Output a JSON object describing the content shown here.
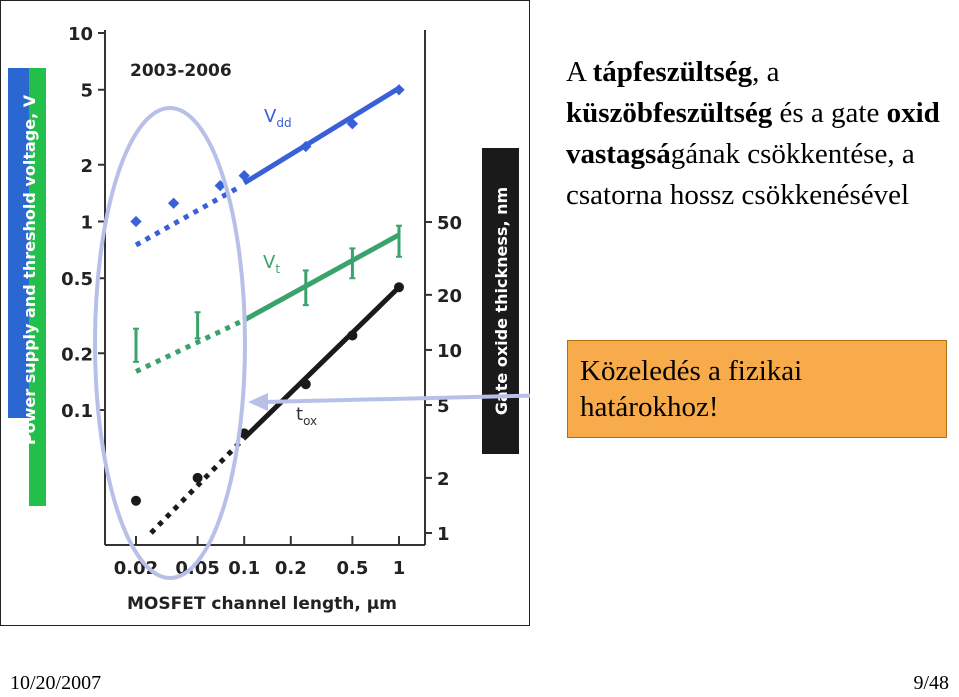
{
  "slide": {
    "title_parts": [
      {
        "text": "A ",
        "bold": false
      },
      {
        "text": "tápfeszültség",
        "bold": true
      },
      {
        "text": ", a ",
        "bold": false
      },
      {
        "text": "küszöbfeszültség",
        "bold": true
      },
      {
        "text": " és a gate ",
        "bold": false
      },
      {
        "text": "oxid vastagsá",
        "bold": true
      },
      {
        "text": "gának csökkentése, a csatorna hossz csökkenésével",
        "bold": false
      }
    ],
    "callout": "Közeledés a fizikai határokhoz!",
    "date": "10/20/2007",
    "page": "9/48"
  },
  "colors": {
    "vdd": "#3a60d8",
    "vt": "#3aa36b",
    "tox": "#1a1a1a",
    "ellipse": "#b8c0e8",
    "arrow": "#b8c0e8",
    "left_axis_band_blue": "#2b67d1",
    "left_axis_band_green": "#22c04a",
    "right_axis_band": "#1a1a1a",
    "callout_fill": "#f7ab4a"
  },
  "chart_data": {
    "type": "scatter",
    "inset_label": "2003-2006",
    "xlabel": "MOSFET channel length, µm",
    "ylabel_left": "Power supply and threshold voltage, V",
    "ylabel_right": "Gate oxide thickness, nm",
    "x_scale": "log",
    "xlim": [
      0.015,
      1.3
    ],
    "x_ticks": [
      0.02,
      0.05,
      0.1,
      0.2,
      0.5,
      1
    ],
    "x_tick_labels": [
      "0.02",
      "0.05",
      "0.1",
      "0.2",
      "0.5",
      "1"
    ],
    "y_left_scale": "log",
    "y_left_ticks": [
      0.1,
      0.2,
      0.5,
      1,
      2,
      5,
      10
    ],
    "y_left_tick_labels": [
      "0.1",
      "0.2",
      "0.5",
      "1",
      "2",
      "5",
      "10"
    ],
    "y_right_scale": "log",
    "y_right_ticks": [
      1,
      2,
      5,
      10,
      20,
      50
    ],
    "y_right_tick_labels": [
      "1",
      "2",
      "5",
      "10",
      "20",
      "50"
    ],
    "series": [
      {
        "name": "Vdd",
        "axis": "left",
        "points": [
          {
            "x": 0.02,
            "y": 1.0
          },
          {
            "x": 0.035,
            "y": 1.25
          },
          {
            "x": 0.07,
            "y": 1.55
          },
          {
            "x": 0.1,
            "y": 1.75
          },
          {
            "x": 0.25,
            "y": 2.5
          },
          {
            "x": 0.5,
            "y": 3.3
          },
          {
            "x": 1.0,
            "y": 5.0
          }
        ],
        "trend_extrapolated": [
          {
            "x": 0.02,
            "y": 0.75
          },
          {
            "x": 0.09,
            "y": 1.5
          }
        ],
        "trend_solid": [
          {
            "x": 0.1,
            "y": 1.6
          },
          {
            "x": 1.0,
            "y": 5.1
          }
        ]
      },
      {
        "name": "Vt",
        "axis": "left",
        "points": [
          {
            "x": 0.02,
            "y": 0.21
          },
          {
            "x": 0.05,
            "y": 0.28
          },
          {
            "x": 0.25,
            "y": 0.45
          },
          {
            "x": 0.5,
            "y": 0.6
          },
          {
            "x": 1.0,
            "y": 0.8
          }
        ],
        "error_low": [
          0.18,
          0.24,
          0.36,
          0.5,
          0.65
        ],
        "error_high": [
          0.27,
          0.33,
          0.55,
          0.72,
          0.95
        ],
        "trend_extrapolated": [
          {
            "x": 0.02,
            "y": 0.16
          },
          {
            "x": 0.1,
            "y": 0.3
          }
        ],
        "trend_solid": [
          {
            "x": 0.1,
            "y": 0.3
          },
          {
            "x": 1.0,
            "y": 0.85
          }
        ]
      },
      {
        "name": "tox",
        "axis": "right",
        "points": [
          {
            "x": 0.02,
            "y": 1.5
          },
          {
            "x": 0.05,
            "y": 2.0
          },
          {
            "x": 0.1,
            "y": 3.5
          },
          {
            "x": 0.25,
            "y": 6.5
          },
          {
            "x": 0.5,
            "y": 12
          },
          {
            "x": 1.0,
            "y": 22
          }
        ],
        "trend_extrapolated": [
          {
            "x": 0.025,
            "y": 1.0
          },
          {
            "x": 0.1,
            "y": 3.3
          }
        ],
        "trend_solid": [
          {
            "x": 0.1,
            "y": 3.3
          },
          {
            "x": 1.0,
            "y": 22
          }
        ]
      }
    ],
    "series_labels": [
      "Vdd",
      "Vt",
      "tox"
    ]
  }
}
